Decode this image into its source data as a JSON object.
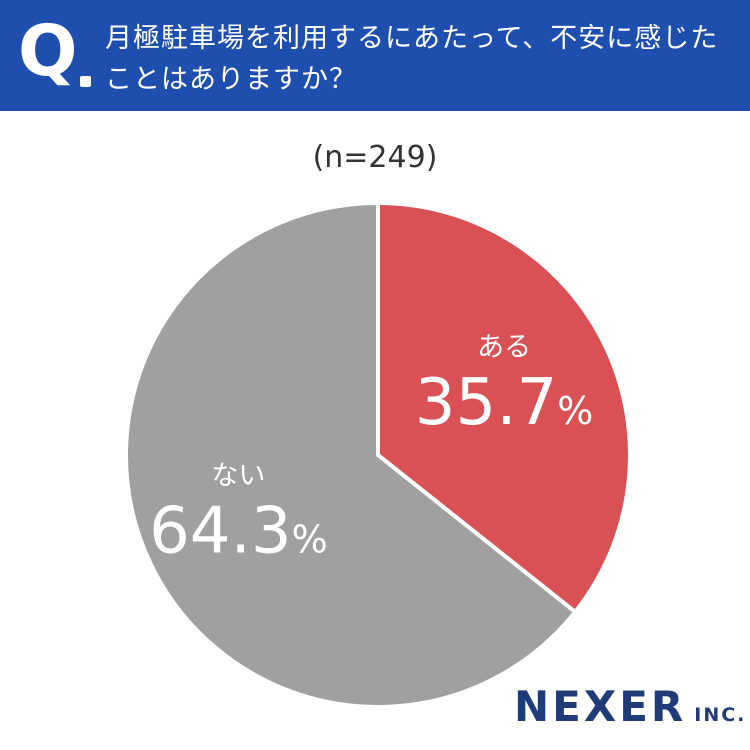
{
  "header": {
    "q_mark": "Q",
    "question": "月極駐車場を利用するにあたって、不安に感じたことはありますか？"
  },
  "sample_label": "(n=249)",
  "brand": {
    "name": "NEXER",
    "suffix": "INC."
  },
  "colors": {
    "header": "#1f4fae",
    "yes": "#d95155",
    "no": "#a0a0a0",
    "brand": "#1f3c78"
  },
  "chart_data": {
    "type": "pie",
    "title": "",
    "n": 249,
    "categories": [
      "ある",
      "ない"
    ],
    "values": [
      35.7,
      64.3
    ],
    "labels": [
      "35.7%",
      "64.3%"
    ],
    "colors": [
      "#d95155",
      "#a0a0a0"
    ],
    "start": "12 o'clock",
    "direction": "clockwise",
    "legend": "none"
  }
}
